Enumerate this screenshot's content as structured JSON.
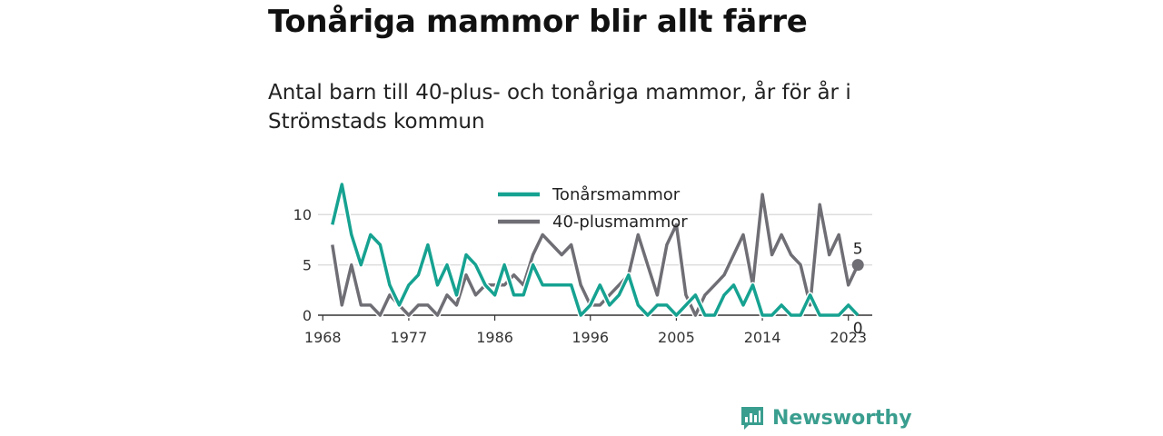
{
  "header": {
    "title": "Tonåriga mammor blir allt färre",
    "subtitle": "Antal barn till 40-plus- och tonåriga mammor, år för år i Strömstads kommun"
  },
  "brand": {
    "name": "Newsworthy"
  },
  "chart_data": {
    "type": "line",
    "x": [
      1969,
      1970,
      1971,
      1972,
      1973,
      1974,
      1975,
      1976,
      1977,
      1978,
      1979,
      1980,
      1981,
      1982,
      1983,
      1984,
      1985,
      1986,
      1987,
      1988,
      1989,
      1990,
      1991,
      1992,
      1993,
      1994,
      1995,
      1996,
      1997,
      1998,
      1999,
      2000,
      2001,
      2002,
      2003,
      2004,
      2005,
      2006,
      2007,
      2008,
      2009,
      2010,
      2011,
      2012,
      2013,
      2014,
      2015,
      2016,
      2017,
      2018,
      2019,
      2020,
      2021,
      2022,
      2023,
      2024
    ],
    "series": [
      {
        "name": "Tonårsmammor",
        "color": "#16a291",
        "values": [
          9,
          13,
          8,
          5,
          8,
          7,
          3,
          1,
          3,
          4,
          7,
          3,
          5,
          2,
          6,
          5,
          3,
          2,
          5,
          2,
          2,
          5,
          3,
          3,
          3,
          3,
          0,
          1,
          3,
          1,
          2,
          4,
          1,
          0,
          1,
          1,
          0,
          1,
          2,
          0,
          0,
          2,
          3,
          1,
          3,
          0,
          0,
          1,
          0,
          0,
          2,
          0,
          0,
          0,
          1,
          0
        ]
      },
      {
        "name": "40-plusmammor",
        "color": "#6f6e75",
        "values": [
          7,
          1,
          5,
          1,
          1,
          0,
          2,
          1,
          0,
          1,
          1,
          0,
          2,
          1,
          4,
          2,
          3,
          3,
          3,
          4,
          3,
          6,
          8,
          7,
          6,
          7,
          3,
          1,
          1,
          2,
          3,
          4,
          8,
          5,
          2,
          7,
          9,
          2,
          0,
          2,
          3,
          4,
          6,
          8,
          3,
          12,
          6,
          8,
          6,
          5,
          1,
          11,
          6,
          8,
          3,
          5
        ]
      }
    ],
    "xticks": [
      "1968",
      "1977",
      "1986",
      "1996",
      "2005",
      "2014",
      "2023"
    ],
    "yticks": [
      "0",
      "5",
      "10"
    ],
    "ylim": [
      0,
      13
    ],
    "xlim": [
      1967.5,
      2025.5
    ],
    "grid": true,
    "legend": "top-center",
    "end_labels": [
      "0",
      "5"
    ]
  }
}
